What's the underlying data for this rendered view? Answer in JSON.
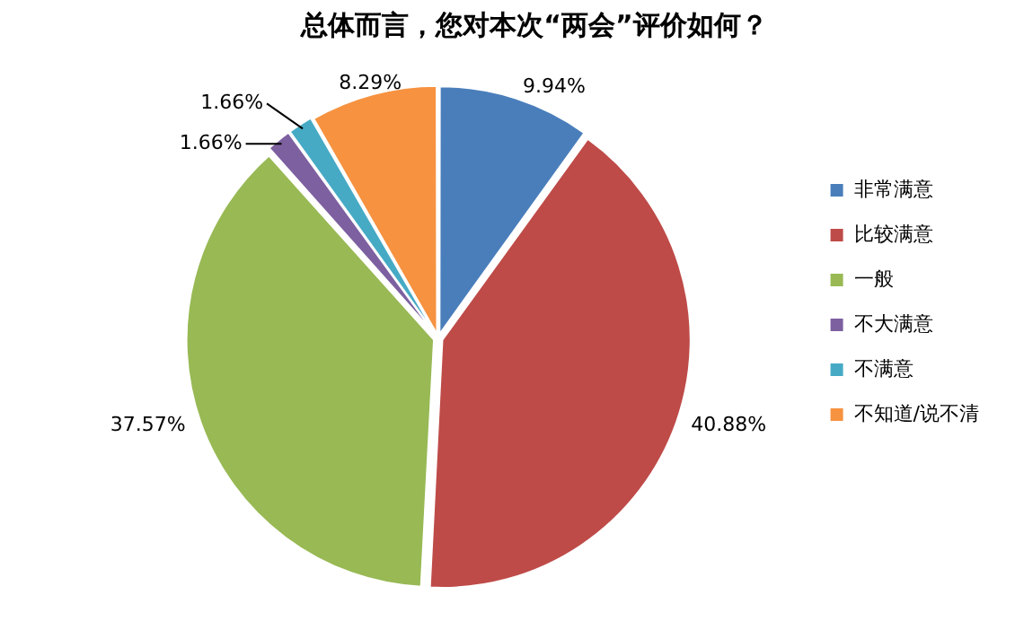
{
  "chart_data": {
    "type": "pie",
    "title": "总体而言，您对本次“两会”评价如何？",
    "categories": [
      "非常满意",
      "比较满意",
      "一般",
      "不大满意",
      "不满意",
      "不知道/说不清"
    ],
    "values": [
      9.94,
      40.88,
      37.57,
      1.66,
      1.66,
      8.29
    ],
    "colors": [
      "#4a7ebb",
      "#be4b48",
      "#98b954",
      "#7d60a0",
      "#46aac5",
      "#f69240"
    ],
    "value_labels": [
      "9.94%",
      "40.88%",
      "37.57%",
      "1.66%",
      "1.66%",
      "8.29%"
    ],
    "legend": "right"
  }
}
